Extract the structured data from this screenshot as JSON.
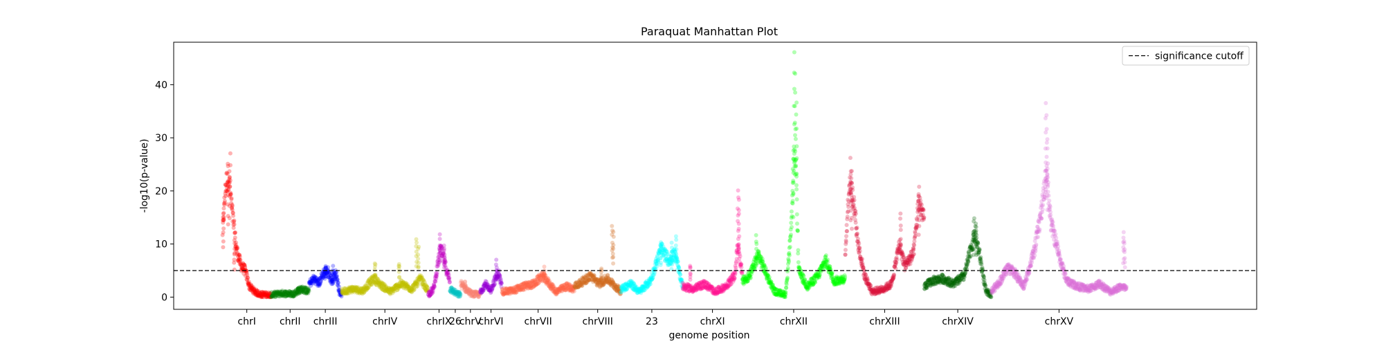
{
  "chart_data": {
    "type": "scatter",
    "title": "Paraquat Manhattan Plot",
    "xlabel": "genome position",
    "ylabel": "-log10(p-value)",
    "ylim": [
      -2.3,
      48
    ],
    "yticks": [
      0,
      10,
      20,
      30,
      40
    ],
    "grid": false,
    "legend": {
      "placement": "top-right",
      "entries": [
        "significance cutoff"
      ]
    },
    "cutoff": 5,
    "x_range": [
      0,
      100
    ],
    "chromosomes": [
      {
        "label": "chrI",
        "x": [
          4.5,
          9.0
        ],
        "color": "#ff0000",
        "profile": [
          [
            4.5,
            12
          ],
          [
            4.8,
            21
          ],
          [
            5.1,
            23
          ],
          [
            5.4,
            16
          ],
          [
            5.8,
            9
          ],
          [
            6.2,
            6
          ],
          [
            6.6,
            5
          ],
          [
            7.0,
            2
          ],
          [
            7.5,
            1
          ],
          [
            8.0,
            0.5
          ],
          [
            9.0,
            0.4
          ]
        ],
        "spikes": [
          [
            5.2,
            27
          ],
          [
            5.0,
            25
          ],
          [
            4.6,
            17
          ],
          [
            5.6,
            10
          ]
        ]
      },
      {
        "label": "chrII",
        "x": [
          9.0,
          12.5
        ],
        "color": "#007f00",
        "profile": [
          [
            9.0,
            0.4
          ],
          [
            10.0,
            0.7
          ],
          [
            11.0,
            0.6
          ],
          [
            11.8,
            1.5
          ],
          [
            12.3,
            1.2
          ],
          [
            12.5,
            1.0
          ]
        ],
        "spikes": [
          [
            11.5,
            2.0
          ]
        ]
      },
      {
        "label": "chrIII",
        "x": [
          12.5,
          15.5
        ],
        "color": "#0000ff",
        "profile": [
          [
            12.5,
            2.5
          ],
          [
            13.0,
            3.5
          ],
          [
            13.4,
            2.5
          ],
          [
            13.8,
            4.5
          ],
          [
            14.2,
            5.0
          ],
          [
            14.6,
            3.0
          ],
          [
            15.0,
            4.5
          ],
          [
            15.3,
            1.0
          ],
          [
            15.5,
            0.5
          ]
        ],
        "spikes": [
          [
            14.0,
            5.8
          ],
          [
            14.7,
            5.5
          ]
        ]
      },
      {
        "label": "chrIV",
        "x": [
          15.5,
          23.5
        ],
        "color": "#bfbf00",
        "profile": [
          [
            15.5,
            1.0
          ],
          [
            16.5,
            1.5
          ],
          [
            17.5,
            1.2
          ],
          [
            18.0,
            2.5
          ],
          [
            18.5,
            3.5
          ],
          [
            19.0,
            2.5
          ],
          [
            20.0,
            1.0
          ],
          [
            21.0,
            2.5
          ],
          [
            22.0,
            1.5
          ],
          [
            22.8,
            3.5
          ],
          [
            23.5,
            1.0
          ]
        ],
        "spikes": [
          [
            18.6,
            6.5
          ],
          [
            20.8,
            6.5
          ],
          [
            22.4,
            11.0
          ],
          [
            22.6,
            9.5
          ]
        ]
      },
      {
        "label": "chrIX",
        "x": [
          23.5,
          25.5
        ],
        "color": "#bf00bf",
        "profile": [
          [
            23.5,
            0.5
          ],
          [
            24.0,
            1.5
          ],
          [
            24.3,
            5.0
          ],
          [
            24.6,
            9.0
          ],
          [
            24.9,
            7.5
          ],
          [
            25.2,
            5.0
          ],
          [
            25.5,
            3.0
          ]
        ],
        "spikes": [
          [
            24.6,
            11.5
          ],
          [
            25.0,
            10.0
          ]
        ]
      },
      {
        "label": "26",
        "x": [
          25.5,
          26.5
        ],
        "color": "#00bfbf",
        "profile": [
          [
            25.5,
            1.5
          ],
          [
            25.9,
            1.0
          ],
          [
            26.2,
            0.5
          ],
          [
            26.5,
            0.5
          ]
        ],
        "spikes": []
      },
      {
        "label": "chrV",
        "x": [
          26.5,
          28.3
        ],
        "color": "#fa8072",
        "profile": [
          [
            26.5,
            2.5
          ],
          [
            27.0,
            1.5
          ],
          [
            27.5,
            0.6
          ],
          [
            28.0,
            0.5
          ],
          [
            28.3,
            0.5
          ]
        ],
        "spikes": [
          [
            26.9,
            3.0
          ]
        ]
      },
      {
        "label": "chrVI",
        "x": [
          28.3,
          30.3
        ],
        "color": "#9400d3",
        "profile": [
          [
            28.3,
            1.0
          ],
          [
            28.8,
            2.5
          ],
          [
            29.2,
            1.0
          ],
          [
            29.6,
            3.0
          ],
          [
            30.0,
            4.5
          ],
          [
            30.3,
            2.0
          ]
        ],
        "spikes": [
          [
            29.8,
            7.0
          ]
        ]
      },
      {
        "label": "chrVII",
        "x": [
          30.3,
          37.0
        ],
        "color": "#ff6347",
        "profile": [
          [
            30.3,
            1.0
          ],
          [
            31.3,
            1.2
          ],
          [
            32.3,
            2.0
          ],
          [
            33.3,
            2.5
          ],
          [
            34.0,
            4.0
          ],
          [
            34.5,
            3.0
          ],
          [
            35.3,
            1.0
          ],
          [
            36.3,
            2.0
          ],
          [
            37.0,
            1.5
          ]
        ],
        "spikes": [
          [
            34.2,
            5.5
          ]
        ]
      },
      {
        "label": "chrVIII",
        "x": [
          37.0,
          41.3
        ],
        "color": "#d2691e",
        "profile": [
          [
            37.0,
            2.0
          ],
          [
            37.8,
            3.0
          ],
          [
            38.5,
            4.0
          ],
          [
            39.3,
            2.5
          ],
          [
            40.0,
            3.5
          ],
          [
            40.8,
            2.0
          ],
          [
            41.3,
            1.0
          ]
        ],
        "spikes": [
          [
            39.5,
            5.5
          ],
          [
            40.5,
            13.5
          ],
          [
            40.6,
            12.0
          ]
        ]
      },
      {
        "label": "23",
        "x": [
          41.3,
          47.0
        ],
        "color": "#00ffff",
        "profile": [
          [
            41.3,
            1.5
          ],
          [
            42.2,
            2.5
          ],
          [
            43.0,
            1.0
          ],
          [
            44.0,
            3.0
          ],
          [
            45.0,
            9.0
          ],
          [
            45.7,
            7.0
          ],
          [
            46.3,
            8.0
          ],
          [
            47.0,
            2.0
          ]
        ],
        "spikes": [
          [
            45.0,
            10.5
          ],
          [
            46.0,
            10.0
          ],
          [
            46.4,
            11.5
          ]
        ]
      },
      {
        "label": "chrXI",
        "x": [
          47.0,
          52.5
        ],
        "color": "#ff1493",
        "profile": [
          [
            47.0,
            2.0
          ],
          [
            48.0,
            1.5
          ],
          [
            49.0,
            2.5
          ],
          [
            50.0,
            1.0
          ],
          [
            51.0,
            2.0
          ],
          [
            51.8,
            4.0
          ],
          [
            52.1,
            10.0
          ],
          [
            52.5,
            4.0
          ]
        ],
        "spikes": [
          [
            52.1,
            20.0
          ],
          [
            52.2,
            18.0
          ],
          [
            47.7,
            6.0
          ]
        ]
      },
      {
        "label": "chrXII",
        "x": [
          52.5,
          62.0
        ],
        "color": "#00ff00",
        "profile": [
          [
            52.5,
            3.0
          ],
          [
            53.2,
            4.0
          ],
          [
            54.0,
            8.0
          ],
          [
            54.8,
            4.0
          ],
          [
            55.5,
            1.0
          ],
          [
            56.5,
            0.5
          ],
          [
            57.0,
            12.0
          ],
          [
            57.4,
            30.0
          ],
          [
            57.7,
            5.0
          ],
          [
            58.5,
            2.0
          ],
          [
            59.5,
            4.0
          ],
          [
            60.2,
            7.0
          ],
          [
            61.0,
            3.0
          ],
          [
            62.0,
            3.5
          ]
        ],
        "spikes": [
          [
            57.3,
            46.0
          ],
          [
            57.4,
            42.0
          ],
          [
            57.5,
            37.0
          ],
          [
            57.2,
            28.0
          ],
          [
            53.8,
            11.5
          ]
        ]
      },
      {
        "label": "chrXIII",
        "x": [
          62.0,
          69.3
        ],
        "color": "#dc143c",
        "profile": [
          [
            62.0,
            8.0
          ],
          [
            62.4,
            22.0
          ],
          [
            62.8,
            18.0
          ],
          [
            63.2,
            10.0
          ],
          [
            63.8,
            4.0
          ],
          [
            64.5,
            1.0
          ],
          [
            65.5,
            1.5
          ],
          [
            66.3,
            2.5
          ],
          [
            67.0,
            10.0
          ],
          [
            67.5,
            6.0
          ],
          [
            68.3,
            8.0
          ],
          [
            68.8,
            18.0
          ],
          [
            69.3,
            15.0
          ]
        ],
        "spikes": [
          [
            62.5,
            26.0
          ],
          [
            62.6,
            24.0
          ],
          [
            67.1,
            16.0
          ],
          [
            68.8,
            21.0
          ]
        ]
      },
      {
        "label": "chrXIV",
        "x": [
          69.3,
          75.5
        ],
        "color": "#006400",
        "profile": [
          [
            69.3,
            2.0
          ],
          [
            70.0,
            3.0
          ],
          [
            71.0,
            3.5
          ],
          [
            72.0,
            2.5
          ],
          [
            73.0,
            4.0
          ],
          [
            73.6,
            9.0
          ],
          [
            74.0,
            12.0
          ],
          [
            74.5,
            7.0
          ],
          [
            75.0,
            1.0
          ],
          [
            75.5,
            0.5
          ]
        ],
        "spikes": [
          [
            73.9,
            15.0
          ],
          [
            74.1,
            14.0
          ]
        ]
      },
      {
        "label": "chrXV",
        "x": [
          75.5,
          88.0
        ],
        "color": "#da70d6",
        "profile": [
          [
            75.5,
            1.0
          ],
          [
            76.3,
            3.0
          ],
          [
            77.0,
            5.5
          ],
          [
            77.5,
            5.0
          ],
          [
            78.5,
            2.0
          ],
          [
            79.5,
            9.0
          ],
          [
            80.2,
            17.0
          ],
          [
            80.6,
            24.0
          ],
          [
            81.0,
            14.0
          ],
          [
            81.5,
            10.0
          ],
          [
            82.0,
            6.0
          ],
          [
            82.5,
            3.0
          ],
          [
            83.5,
            2.0
          ],
          [
            84.5,
            1.5
          ],
          [
            85.5,
            2.5
          ],
          [
            86.5,
            1.0
          ],
          [
            87.5,
            2.0
          ],
          [
            88.0,
            1.5
          ]
        ],
        "spikes": [
          [
            80.5,
            36.5
          ],
          [
            80.6,
            34.0
          ],
          [
            80.7,
            30.0
          ],
          [
            87.7,
            12.0
          ],
          [
            87.8,
            10.5
          ]
        ]
      }
    ]
  }
}
